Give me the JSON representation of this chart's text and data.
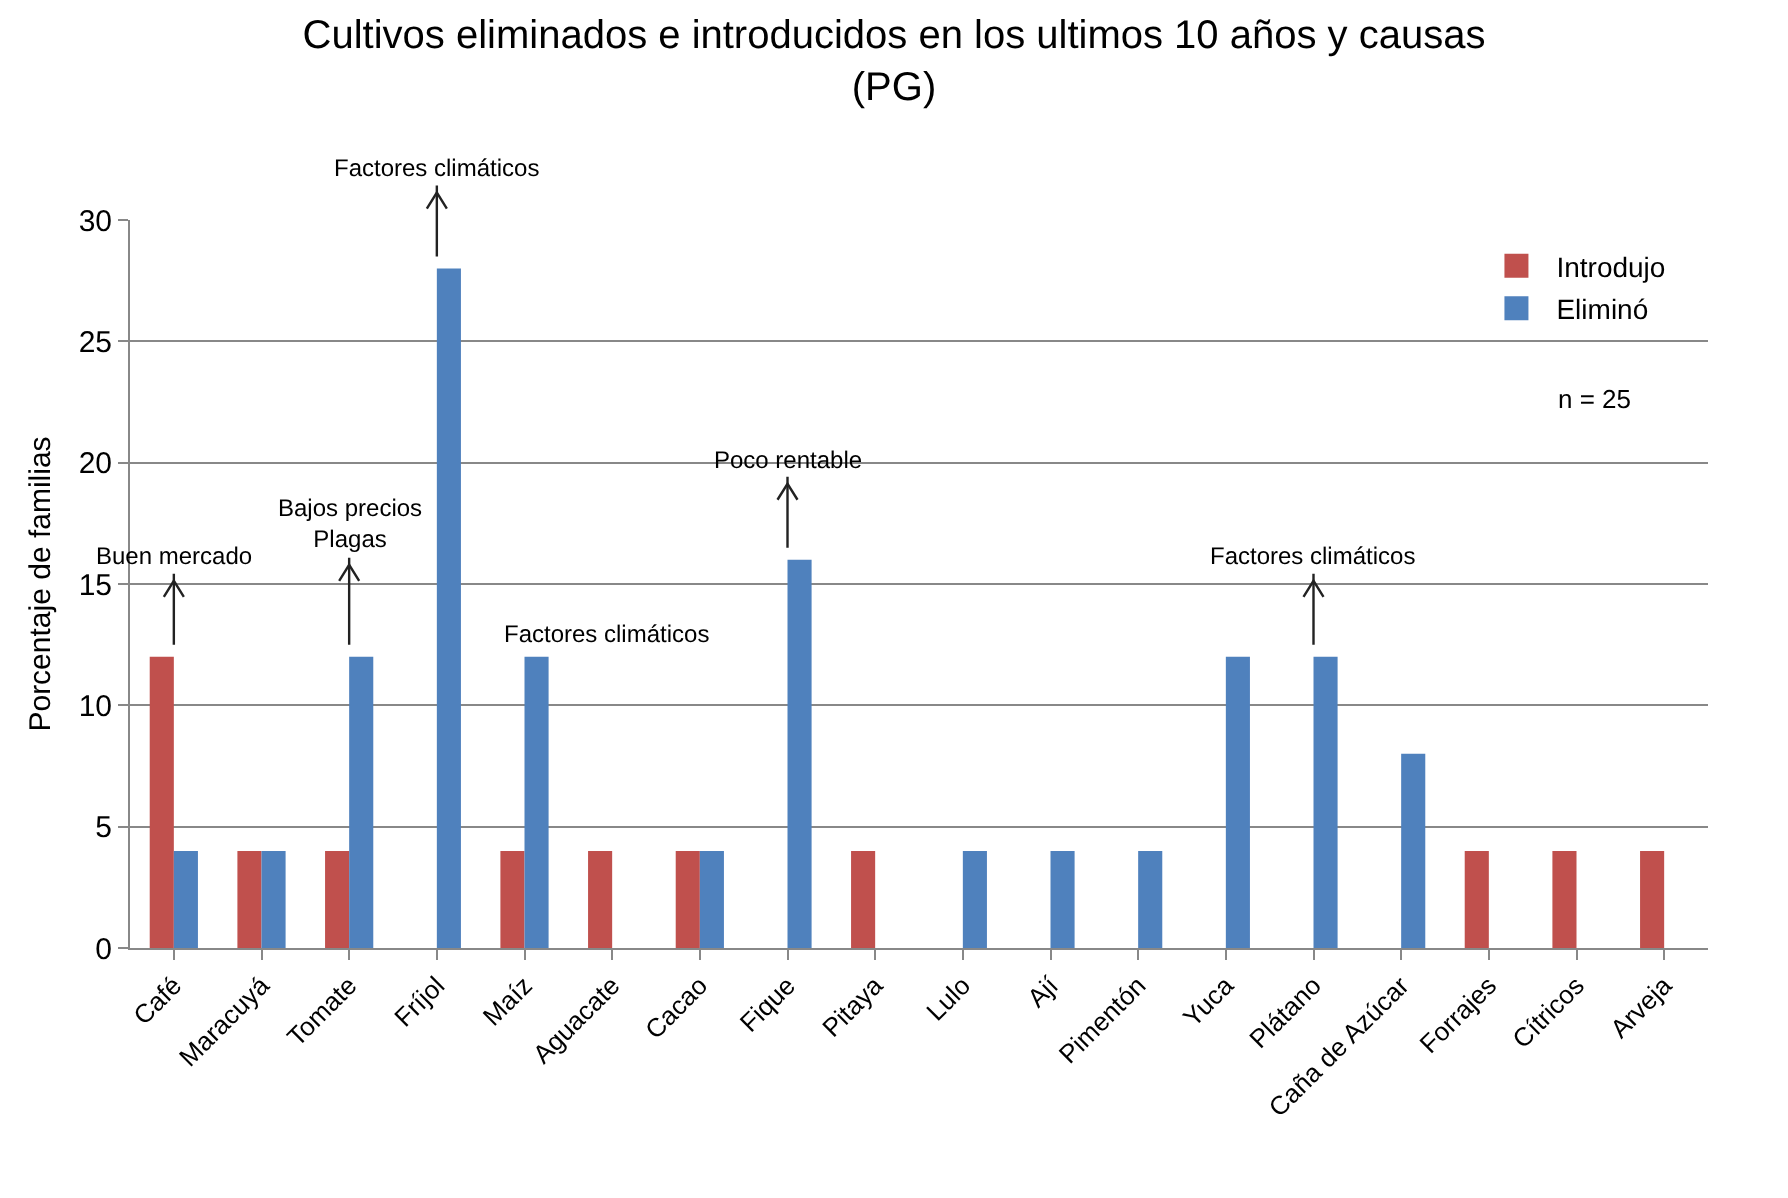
{
  "chart_data": {
    "type": "bar",
    "title": "Cultivos eliminados e introducidos en los ultimos 10 años y causas\n(PG)",
    "ylabel": "Porcentaje de familias",
    "categories": [
      "Café",
      "Maracuyá",
      "Tomate",
      "Fríjol",
      "Maíz",
      "Aguacate",
      "Cacao",
      "Fique",
      "Pitaya",
      "Lulo",
      "Ají",
      "Pimentón",
      "Yuca",
      "Plátano",
      "Caña de Azúcar",
      "Forrajes",
      "Cítricos",
      "Arveja"
    ],
    "series": [
      {
        "name": "Introdujo",
        "color": "#c0504d",
        "values": [
          12,
          4,
          4,
          null,
          4,
          4,
          4,
          null,
          4,
          null,
          null,
          null,
          null,
          null,
          null,
          4,
          4,
          4
        ]
      },
      {
        "name": "Eliminó",
        "color": "#4f81bd",
        "values": [
          4,
          4,
          12,
          28,
          12,
          null,
          4,
          16,
          null,
          4,
          4,
          4,
          12,
          12,
          8,
          null,
          null,
          null
        ]
      }
    ],
    "ylim": [
      0,
      30
    ],
    "yticks": [
      0,
      5,
      10,
      15,
      20,
      25,
      30
    ],
    "grid": "y",
    "legend": "top right",
    "annotations": [
      {
        "text": "Buen mercado",
        "x": "Café",
        "y": 12
      },
      {
        "text": "Bajos precios\nPlagas",
        "x": "Tomate",
        "y": 12
      },
      {
        "text": "Factores climáticos",
        "x": "Fríjol",
        "y": 28
      },
      {
        "text": "Factores climáticos",
        "x": "Maíz",
        "y": 12
      },
      {
        "text": "Poco rentable",
        "x": "Fique",
        "y": 16
      },
      {
        "text": "Factores climáticos",
        "x": "Plátano",
        "y": 12
      },
      "n = 25"
    ]
  }
}
